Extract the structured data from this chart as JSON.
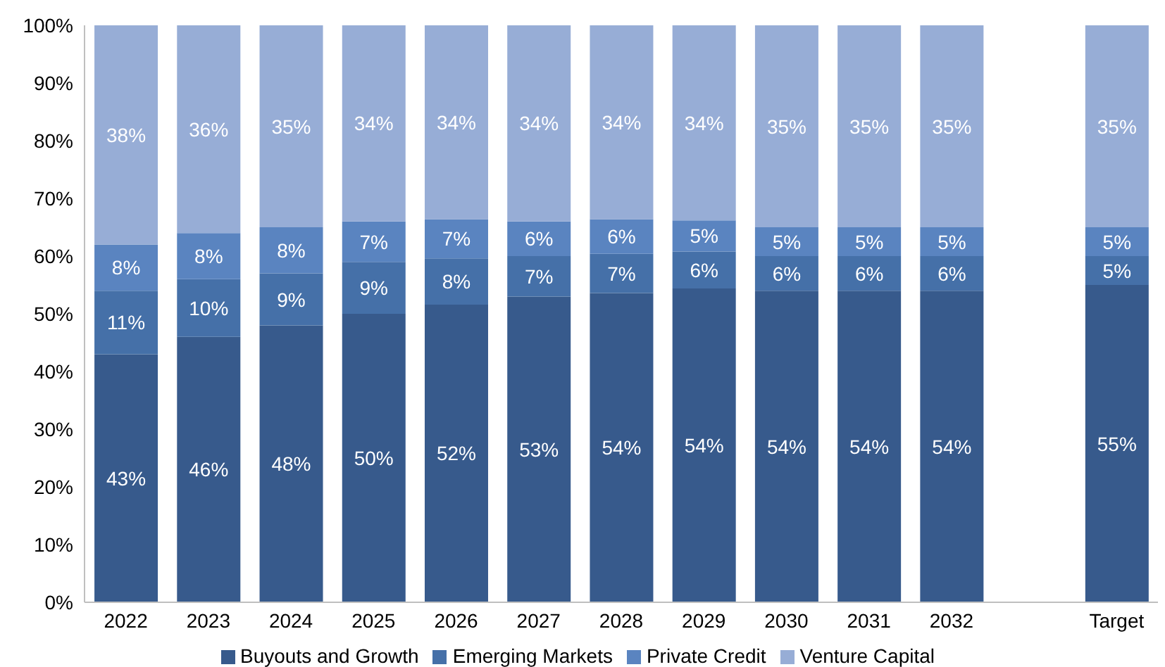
{
  "chart_data": {
    "type": "bar",
    "stacked": true,
    "categories": [
      "2022",
      "2023",
      "2024",
      "2025",
      "2026",
      "2027",
      "2028",
      "2029",
      "2030",
      "2031",
      "2032",
      null,
      "Target"
    ],
    "series": [
      {
        "name": "Buyouts and Growth",
        "color": "#375a8c",
        "values": [
          43,
          46,
          48,
          50,
          51.6,
          53,
          53.6,
          54.4,
          54,
          54,
          54,
          null,
          55
        ],
        "value_labels": [
          "43%",
          "46%",
          "48%",
          "50%",
          "52%",
          "53%",
          "54%",
          "54%",
          "54%",
          "54%",
          "54%",
          null,
          "55%"
        ]
      },
      {
        "name": "Emerging Markets",
        "color": "#4570a8",
        "values": [
          11,
          10,
          9,
          9,
          8,
          7,
          6.8,
          6.4,
          6,
          6,
          6,
          null,
          5
        ],
        "value_labels": [
          "11%",
          "10%",
          "9%",
          "9%",
          "8%",
          "7%",
          "7%",
          "6%",
          "6%",
          "6%",
          "6%",
          null,
          "5%"
        ]
      },
      {
        "name": "Private Credit",
        "color": "#5a84c0",
        "values": [
          8,
          8,
          8,
          7,
          6.8,
          6,
          6,
          5.4,
          5,
          5,
          5,
          null,
          5
        ],
        "value_labels": [
          "8%",
          "8%",
          "8%",
          "7%",
          "7%",
          "6%",
          "6%",
          "5%",
          "5%",
          "5%",
          "5%",
          null,
          "5%"
        ]
      },
      {
        "name": "Venture Capital",
        "color": "#97add6",
        "values": [
          38,
          36,
          35,
          34,
          33.6,
          34,
          33.6,
          33.8,
          35,
          35,
          35,
          null,
          35
        ],
        "value_labels": [
          "38%",
          "36%",
          "35%",
          "34%",
          "34%",
          "34%",
          "34%",
          "34%",
          "35%",
          "35%",
          "35%",
          null,
          "35%"
        ]
      }
    ],
    "ylim": [
      0,
      100
    ],
    "yticks": [
      {
        "value": 0,
        "label": "0%"
      },
      {
        "value": 10,
        "label": "10%"
      },
      {
        "value": 20,
        "label": "20%"
      },
      {
        "value": 30,
        "label": "30%"
      },
      {
        "value": 40,
        "label": "40%"
      },
      {
        "value": 50,
        "label": "50%"
      },
      {
        "value": 60,
        "label": "60%"
      },
      {
        "value": 70,
        "label": "70%"
      },
      {
        "value": 80,
        "label": "80%"
      },
      {
        "value": 90,
        "label": "90%"
      },
      {
        "value": 100,
        "label": "100%"
      }
    ],
    "legend": "bottom"
  }
}
